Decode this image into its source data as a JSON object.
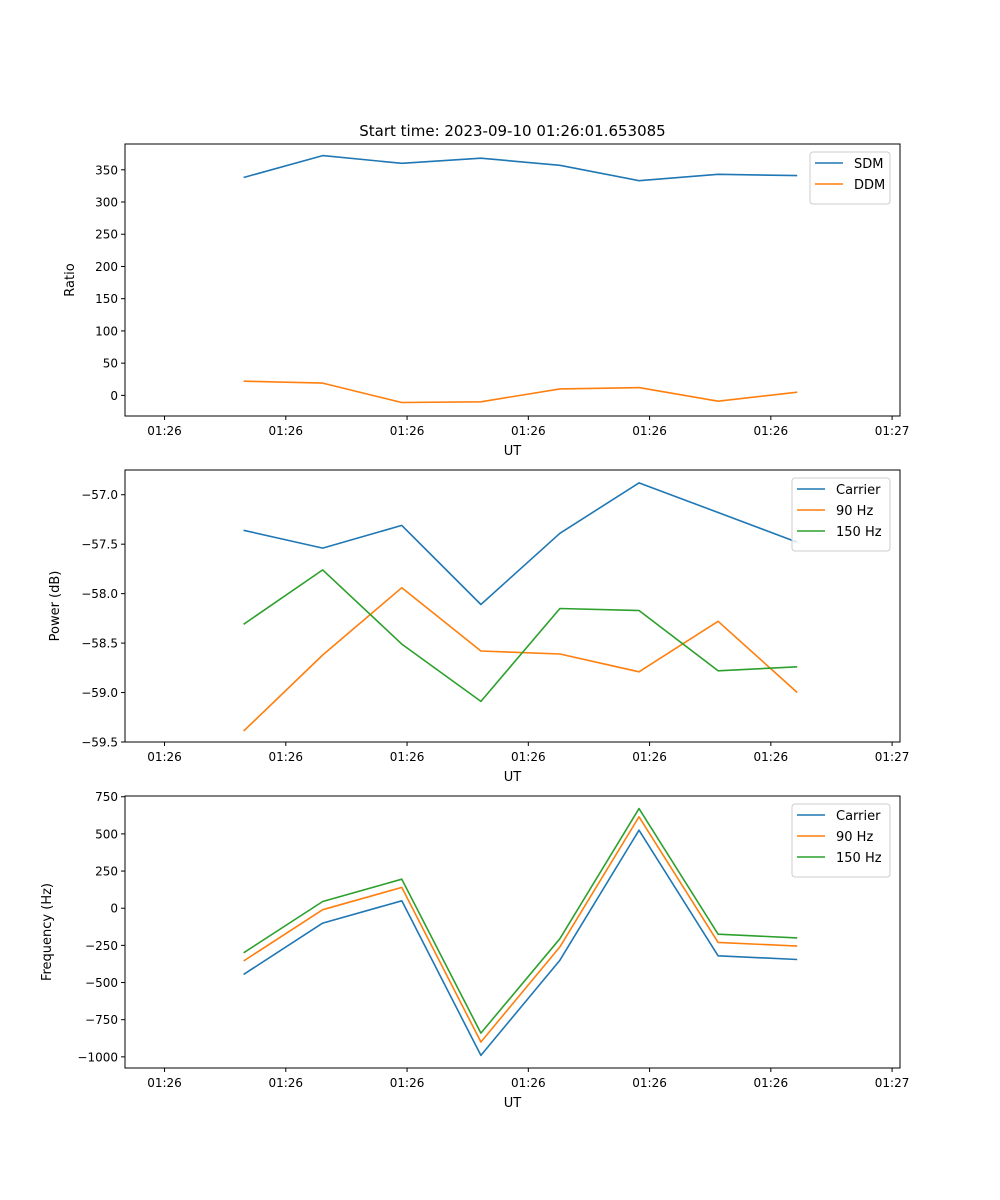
{
  "chart_data": [
    {
      "type": "line",
      "title": "Start time: 2023-09-10 01:26:01.653085",
      "xlabel": "UT",
      "ylabel": "Ratio",
      "x": [
        1,
        2,
        3,
        4,
        5,
        6,
        7,
        8
      ],
      "xlim": [
        -0.5,
        9.3
      ],
      "x_ticks": [
        0,
        1.5333,
        3.0667,
        4.6,
        6.1333,
        7.6667,
        9.2
      ],
      "x_tick_labels": [
        "01:26",
        "01:26",
        "01:26",
        "01:26",
        "01:26",
        "01:26",
        "01:27"
      ],
      "ylim": [
        -32,
        390
      ],
      "y_ticks": [
        0,
        50,
        100,
        150,
        200,
        250,
        300,
        350
      ],
      "y_tick_labels": [
        "0",
        "50",
        "100",
        "150",
        "200",
        "250",
        "300",
        "350"
      ],
      "legend_position": "top-right",
      "series": [
        {
          "name": "SDM",
          "color": "#1f77b4",
          "values": [
            338,
            372,
            360,
            368,
            357,
            333,
            343,
            341
          ]
        },
        {
          "name": "DDM",
          "color": "#ff7f0e",
          "values": [
            22,
            19,
            -11,
            -10,
            10,
            12,
            -9,
            5
          ]
        }
      ]
    },
    {
      "type": "line",
      "title": "",
      "xlabel": "UT",
      "ylabel": "Power (dB)",
      "x": [
        1,
        2,
        3,
        4,
        5,
        6,
        7,
        8
      ],
      "xlim": [
        -0.5,
        9.3
      ],
      "x_ticks": [
        0,
        1.5333,
        3.0667,
        4.6,
        6.1333,
        7.6667,
        9.2
      ],
      "x_tick_labels": [
        "01:26",
        "01:26",
        "01:26",
        "01:26",
        "01:26",
        "01:26",
        "01:27"
      ],
      "ylim": [
        -59.5,
        -56.75
      ],
      "y_ticks": [
        -59.5,
        -59.0,
        -58.5,
        -58.0,
        -57.5,
        -57.0
      ],
      "y_tick_labels": [
        "−59.5",
        "−59.0",
        "−58.5",
        "−58.0",
        "−57.5",
        "−57.0"
      ],
      "legend_position": "top-right",
      "series": [
        {
          "name": "Carrier",
          "color": "#1f77b4",
          "values": [
            -57.36,
            -57.54,
            -57.31,
            -58.11,
            -57.39,
            -56.88,
            -57.18,
            -57.48
          ]
        },
        {
          "name": "90 Hz",
          "color": "#ff7f0e",
          "values": [
            -59.39,
            -58.62,
            -57.94,
            -58.58,
            -58.61,
            -58.79,
            -58.28,
            -59.0
          ]
        },
        {
          "name": "150 Hz",
          "color": "#2ca02c",
          "values": [
            -58.31,
            -57.76,
            -58.51,
            -59.09,
            -58.15,
            -58.17,
            -58.78,
            -58.74
          ]
        }
      ]
    },
    {
      "type": "line",
      "title": "",
      "xlabel": "UT",
      "ylabel": "Frequency (Hz)",
      "x": [
        1,
        2,
        3,
        4,
        5,
        6,
        7,
        8
      ],
      "xlim": [
        -0.5,
        9.3
      ],
      "x_ticks": [
        0,
        1.5333,
        3.0667,
        4.6,
        6.1333,
        7.6667,
        9.2
      ],
      "x_tick_labels": [
        "01:26",
        "01:26",
        "01:26",
        "01:26",
        "01:26",
        "01:26",
        "01:27"
      ],
      "ylim": [
        -1075,
        755
      ],
      "y_ticks": [
        -1000,
        -750,
        -500,
        -250,
        0,
        250,
        500,
        750
      ],
      "y_tick_labels": [
        "−1000",
        "−750",
        "−500",
        "−250",
        "0",
        "250",
        "500",
        "750"
      ],
      "legend_position": "top-right",
      "series": [
        {
          "name": "Carrier",
          "color": "#1f77b4",
          "values": [
            -445,
            -100,
            50,
            -990,
            -350,
            525,
            -320,
            -345
          ]
        },
        {
          "name": "90 Hz",
          "color": "#ff7f0e",
          "values": [
            -355,
            -10,
            140,
            -900,
            -260,
            615,
            -230,
            -255
          ]
        },
        {
          "name": "150 Hz",
          "color": "#2ca02c",
          "values": [
            -300,
            45,
            195,
            -840,
            -205,
            670,
            -175,
            -200
          ]
        }
      ]
    }
  ]
}
